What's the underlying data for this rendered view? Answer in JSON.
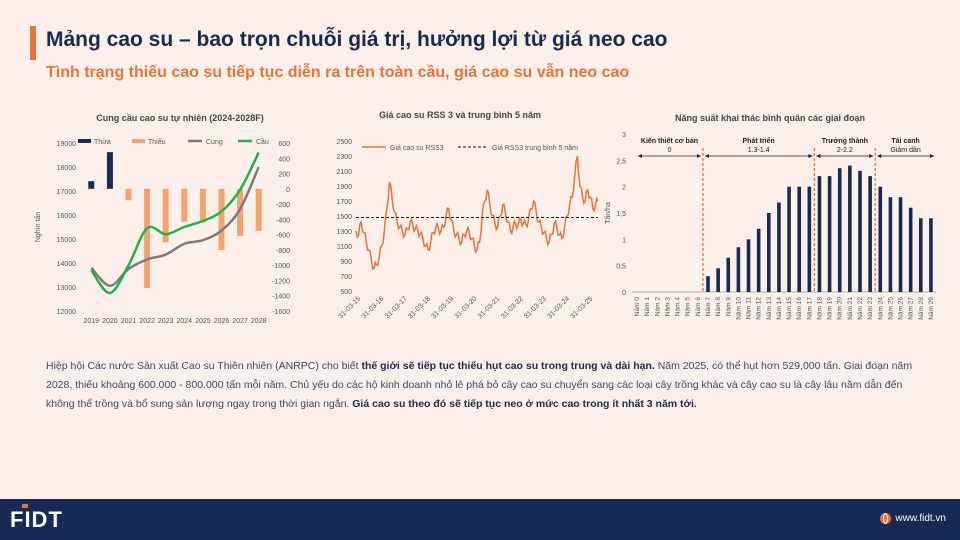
{
  "header": {
    "title": "Mảng cao su – bao trọn chuỗi giá trị, hưởng lợi từ giá neo cao",
    "subtitle": "Tình trạng thiếu cao su tiếp tục diễn ra trên toàn cầu, giá cao su vẫn neo cao"
  },
  "colors": {
    "navy": "#162a55",
    "orange": "#e8743a",
    "bar_orange": "#f4a36c",
    "green": "#22b04a",
    "gray": "#7b7b7b",
    "bg": "#fdf0ea"
  },
  "chart_data": [
    {
      "type": "bar",
      "title": "Cung cầu cao su tự nhiên (2024-2028F)",
      "ylabel": "Nghìn tấn",
      "categories": [
        "2019",
        "2020",
        "2021",
        "2022",
        "2023",
        "2024",
        "2025",
        "2026",
        "2027",
        "2028"
      ],
      "left_ylim": [
        12000,
        19000
      ],
      "left_ticks": [
        "12000",
        "13000",
        "14000",
        "15000",
        "16000",
        "17000",
        "18000",
        "19000"
      ],
      "right_ylim": [
        -1600,
        600
      ],
      "right_ticks": [
        "600",
        "400",
        "200",
        "0",
        "-200",
        "-400",
        "-600",
        "-800",
        "-1000",
        "-1200",
        "-1400",
        "-1600"
      ],
      "legend": [
        "Thừa",
        "Thiếu",
        "Cung",
        "Cầu"
      ],
      "series": [
        {
          "name": "Thừa",
          "axis": "right",
          "values": [
            100,
            480,
            0,
            0,
            0,
            0,
            0,
            0,
            0,
            0
          ]
        },
        {
          "name": "Thiếu",
          "axis": "right",
          "values": [
            0,
            0,
            -150,
            -1300,
            -700,
            -430,
            -440,
            -800,
            -620,
            -550
          ]
        },
        {
          "name": "Cung",
          "axis": "left",
          "values": [
            13800,
            13050,
            13750,
            14150,
            14350,
            14800,
            14950,
            15350,
            16250,
            18000
          ]
        },
        {
          "name": "Cầu",
          "axis": "left",
          "values": [
            13700,
            12750,
            13900,
            15450,
            15200,
            15500,
            15750,
            16150,
            17050,
            18600
          ]
        }
      ]
    },
    {
      "type": "line",
      "title": "Giá cao su RSS 3 và trung bình 5 năm",
      "ylim": [
        500,
        2500
      ],
      "yticks": [
        "500",
        "700",
        "900",
        "1100",
        "1300",
        "1500",
        "1700",
        "1900",
        "2100",
        "2300",
        "2500"
      ],
      "xticks": [
        "31-03-15",
        "31-03-16",
        "31-03-17",
        "31-03-18",
        "31-03-19",
        "31-03-20",
        "31-03-21",
        "31-03-22",
        "31-03-23",
        "31-03-24",
        "31-03-25"
      ],
      "legend": [
        "Giá cao su RSS3",
        "Giá RSS3 trung bình 5 năm"
      ],
      "avg_5y": 1480,
      "series": [
        {
          "name": "Giá cao su RSS3",
          "values": [
            1300,
            1250,
            1420,
            1280,
            1150,
            1050,
            900,
            800,
            850,
            950,
            1100,
            1300,
            1600,
            1950,
            1750,
            1550,
            1420,
            1350,
            1300,
            1250,
            1320,
            1420,
            1380,
            1330,
            1300,
            1260,
            1200,
            1100,
            1050,
            1150,
            1280,
            1350,
            1330,
            1300,
            1350,
            1500,
            1600,
            1450,
            1300,
            1250,
            1200,
            1150,
            1250,
            1300,
            1280,
            1200,
            1100,
            1050,
            1150,
            1500,
            1700,
            1850,
            1650,
            1500,
            1400,
            1350,
            1500,
            1650,
            1550,
            1420,
            1300,
            1350,
            1400,
            1380,
            1450,
            1400,
            1380,
            1450,
            1600,
            1700,
            1550,
            1420,
            1350,
            1280,
            1200,
            1150,
            1250,
            1400,
            1350,
            1250,
            1200,
            1350,
            1500,
            1650,
            1750,
            2050,
            2300,
            1900,
            1750,
            1700,
            1850,
            1750,
            1600,
            1650,
            1700
          ]
        }
      ]
    },
    {
      "type": "bar",
      "title": "Năng suất khai thác bình quân các giai đoạn",
      "ylabel": "Tấn/ha",
      "ylim": [
        0,
        3
      ],
      "yticks": [
        "0",
        "0,5",
        "1",
        "1,5",
        "2",
        "2,5",
        "3"
      ],
      "categories": [
        "Năm 0",
        "Năm 1",
        "Năm 2",
        "Năm 3",
        "Năm 4",
        "Năm 5",
        "Năm 6",
        "Năm 7",
        "Năm 8",
        "Năm 9",
        "Năm 10",
        "Năm 11",
        "Năm 12",
        "Năm 13",
        "Năm 14",
        "Năm 15",
        "Năm 16",
        "Năm 17",
        "Năm 18",
        "Năm 19",
        "Năm 20",
        "Năm 21",
        "Năm 22",
        "Năm 23",
        "Năm 24",
        "Năm 25",
        "Năm 26",
        "Năm 27",
        "Năm 28",
        "Năm 29"
      ],
      "values": [
        0,
        0,
        0,
        0,
        0,
        0,
        0,
        0.3,
        0.45,
        0.65,
        0.85,
        1.0,
        1.2,
        1.5,
        1.7,
        2.0,
        2.0,
        2.0,
        2.2,
        2.2,
        2.35,
        2.4,
        2.3,
        2.2,
        2.0,
        1.8,
        1.8,
        1.6,
        1.4,
        1.4
      ],
      "phases": [
        {
          "name": "Kiến thiết cơ bản",
          "value": "0"
        },
        {
          "name": "Phát triển",
          "value": "1.3-1.4"
        },
        {
          "name": "Trưởng thành",
          "value": "2-2.2"
        },
        {
          "name": "Tái canh",
          "value": "Giảm dần"
        }
      ]
    }
  ],
  "body": {
    "p1": "Hiệp hội Các nước Sản xuất Cao su Thiên nhiên (ANRPC) cho biết ",
    "b1": "thế giới sẽ tiếp tục thiếu hụt cao su trong trung và dài hạn.",
    "p2": " Năm 2025, có thể hụt hơn 529,000 tấn. Giai đoạn năm 2028, thiếu khoảng 600.000 - 800.000 tấn mỗi năm. Chủ yếu do các hộ kinh doanh nhỏ lẻ phá bỏ cây cao su chuyển sang các loại cây trồng khác và cây cao su là cây lâu năm dẫn đến không thể trồng và bổ sung sản lượng ngay trong thời gian ngắn. ",
    "b2": "Giá cao su theo đó sẽ tiếp tục neo ở mức cao trong ít nhất 3 năm tới."
  },
  "footer": {
    "logo": "FIDT",
    "website": "www.fidt.vn"
  }
}
